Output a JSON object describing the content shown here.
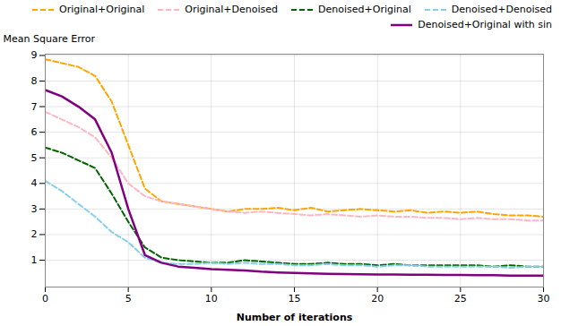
{
  "chart_data": {
    "type": "line",
    "xlabel": "Number of iterations",
    "ylabel": "Mean Square Error",
    "x": [
      0,
      1,
      2,
      3,
      4,
      5,
      6,
      7,
      8,
      9,
      10,
      11,
      12,
      13,
      14,
      15,
      16,
      17,
      18,
      19,
      20,
      21,
      22,
      23,
      24,
      25,
      26,
      27,
      28,
      29,
      30
    ],
    "series": [
      {
        "name": "Original+Original",
        "color": "#FFA500",
        "line_style": "dashed",
        "values": [
          8.85,
          8.7,
          8.55,
          8.2,
          7.2,
          5.5,
          3.8,
          3.3,
          3.2,
          3.1,
          3.0,
          2.9,
          3.0,
          3.0,
          3.05,
          2.95,
          3.05,
          2.9,
          2.95,
          3.0,
          2.95,
          2.9,
          2.95,
          2.85,
          2.9,
          2.85,
          2.9,
          2.8,
          2.75,
          2.75,
          2.7
        ]
      },
      {
        "name": "Original+Denoised",
        "color": "#FFB6C1",
        "line_style": "dashed",
        "values": [
          6.8,
          6.5,
          6.2,
          5.8,
          5.0,
          4.0,
          3.5,
          3.3,
          3.2,
          3.1,
          3.0,
          2.9,
          2.85,
          2.9,
          2.85,
          2.8,
          2.75,
          2.8,
          2.75,
          2.7,
          2.75,
          2.7,
          2.7,
          2.65,
          2.65,
          2.6,
          2.65,
          2.6,
          2.6,
          2.55,
          2.55
        ]
      },
      {
        "name": "Denoised+Original",
        "color": "#006400",
        "line_style": "dashed",
        "values": [
          5.4,
          5.2,
          4.9,
          4.6,
          3.6,
          2.5,
          1.5,
          1.1,
          1.0,
          0.95,
          0.9,
          0.9,
          1.0,
          0.95,
          0.9,
          0.85,
          0.85,
          0.9,
          0.85,
          0.85,
          0.8,
          0.85,
          0.8,
          0.8,
          0.8,
          0.8,
          0.8,
          0.75,
          0.8,
          0.75,
          0.75
        ]
      },
      {
        "name": "Denoised+Denoised",
        "color": "#87CEEB",
        "line_style": "dashed",
        "values": [
          4.1,
          3.7,
          3.2,
          2.7,
          2.1,
          1.7,
          1.1,
          0.9,
          0.85,
          0.85,
          0.9,
          0.85,
          0.9,
          0.85,
          0.85,
          0.8,
          0.8,
          0.85,
          0.8,
          0.8,
          0.75,
          0.8,
          0.8,
          0.75,
          0.75,
          0.75,
          0.75,
          0.75,
          0.7,
          0.75,
          0.75
        ]
      },
      {
        "name": "Denoised+Original with sin",
        "color": "#800080",
        "line_style": "solid",
        "values": [
          7.65,
          7.4,
          7.0,
          6.5,
          5.2,
          3.0,
          1.2,
          0.9,
          0.75,
          0.7,
          0.65,
          0.62,
          0.6,
          0.55,
          0.52,
          0.5,
          0.48,
          0.47,
          0.46,
          0.45,
          0.44,
          0.44,
          0.43,
          0.43,
          0.42,
          0.42,
          0.41,
          0.41,
          0.4,
          0.4,
          0.4
        ]
      }
    ],
    "xlim": [
      0,
      30
    ],
    "xticks": [
      0,
      5,
      10,
      15,
      20,
      25,
      30
    ],
    "ylim": [
      -0.05,
      9.05
    ],
    "yticks": [
      1,
      2,
      3,
      4,
      5,
      6,
      7,
      8,
      9
    ],
    "grid": true,
    "legend": "upper right"
  }
}
